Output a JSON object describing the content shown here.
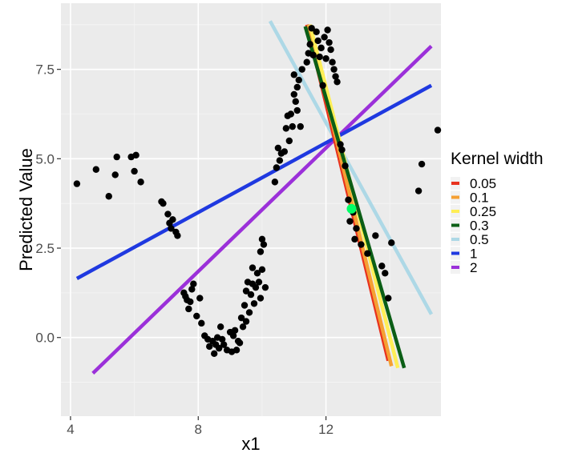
{
  "chart_data": {
    "type": "scatter",
    "title": "",
    "xlabel": "x1",
    "ylabel": "Predicted Value",
    "xlim": [
      3.7,
      15.6
    ],
    "ylim": [
      -2.2,
      9.35
    ],
    "x_ticks": [
      4,
      8,
      12
    ],
    "x_tick_labels": [
      "4",
      "8",
      "12"
    ],
    "y_ticks": [
      0,
      2.5,
      5,
      7.5
    ],
    "y_tick_labels": [
      "0.0",
      "2.5",
      "5.0",
      "7.5"
    ],
    "grid": true,
    "legend": {
      "title": "Kernel width",
      "placement": "right",
      "entries": [
        {
          "label": "0.05",
          "color": "#e8321e"
        },
        {
          "label": "0.1",
          "color": "#f5a033"
        },
        {
          "label": "0.25",
          "color": "#ffee55"
        },
        {
          "label": "0.3",
          "color": "#0b5e16"
        },
        {
          "label": "0.5",
          "color": "#add8e6"
        },
        {
          "label": "1",
          "color": "#1f39e0"
        },
        {
          "label": "2",
          "color": "#9b30d9"
        }
      ]
    },
    "points": [
      [
        4.2,
        4.3
      ],
      [
        4.8,
        4.7
      ],
      [
        5.2,
        3.95
      ],
      [
        5.4,
        4.55
      ],
      [
        5.45,
        5.05
      ],
      [
        5.9,
        5.05
      ],
      [
        6.05,
        5.1
      ],
      [
        6.2,
        4.35
      ],
      [
        6.0,
        4.65
      ],
      [
        6.85,
        3.8
      ],
      [
        6.9,
        3.75
      ],
      [
        7.05,
        3.45
      ],
      [
        7.1,
        3.2
      ],
      [
        7.15,
        3.05
      ],
      [
        7.2,
        3.3
      ],
      [
        7.3,
        2.95
      ],
      [
        7.35,
        2.85
      ],
      [
        7.55,
        1.25
      ],
      [
        7.6,
        1.15
      ],
      [
        7.65,
        1.05
      ],
      [
        7.7,
        0.8
      ],
      [
        7.75,
        1.0
      ],
      [
        7.85,
        1.5
      ],
      [
        7.8,
        1.35
      ],
      [
        7.95,
        0.6
      ],
      [
        8.05,
        1.1
      ],
      [
        8.1,
        0.4
      ],
      [
        8.2,
        0.05
      ],
      [
        8.3,
        -0.05
      ],
      [
        8.35,
        -0.25
      ],
      [
        8.45,
        -0.1
      ],
      [
        8.5,
        -0.45
      ],
      [
        8.55,
        -0.2
      ],
      [
        8.6,
        0.0
      ],
      [
        8.65,
        -0.3
      ],
      [
        8.7,
        0.3
      ],
      [
        8.75,
        -0.05
      ],
      [
        8.8,
        -0.2
      ],
      [
        8.9,
        -0.35
      ],
      [
        9.0,
        0.15
      ],
      [
        9.05,
        -0.4
      ],
      [
        9.1,
        0.05
      ],
      [
        9.15,
        0.2
      ],
      [
        9.2,
        -0.35
      ],
      [
        9.25,
        -0.1
      ],
      [
        9.3,
        -0.15
      ],
      [
        9.35,
        0.55
      ],
      [
        9.4,
        0.3
      ],
      [
        9.45,
        0.9
      ],
      [
        9.5,
        1.3
      ],
      [
        9.5,
        0.45
      ],
      [
        9.55,
        1.55
      ],
      [
        9.6,
        0.7
      ],
      [
        9.65,
        1.2
      ],
      [
        9.7,
        1.95
      ],
      [
        9.7,
        1.5
      ],
      [
        9.75,
        0.95
      ],
      [
        9.8,
        1.4
      ],
      [
        9.85,
        1.8
      ],
      [
        9.9,
        1.55
      ],
      [
        9.95,
        2.4
      ],
      [
        9.95,
        1.1
      ],
      [
        10.0,
        2.75
      ],
      [
        10.0,
        1.9
      ],
      [
        10.05,
        2.6
      ],
      [
        10.1,
        1.4
      ],
      [
        10.4,
        4.35
      ],
      [
        10.45,
        4.75
      ],
      [
        10.5,
        5.3
      ],
      [
        10.55,
        4.95
      ],
      [
        10.6,
        5.15
      ],
      [
        10.7,
        5.2
      ],
      [
        10.75,
        5.85
      ],
      [
        10.8,
        6.2
      ],
      [
        10.85,
        5.5
      ],
      [
        10.9,
        6.25
      ],
      [
        10.95,
        5.9
      ],
      [
        11.0,
        6.8
      ],
      [
        11.0,
        7.35
      ],
      [
        11.05,
        6.6
      ],
      [
        11.1,
        6.35
      ],
      [
        11.1,
        7.0
      ],
      [
        11.15,
        7.2
      ],
      [
        11.2,
        5.9
      ],
      [
        11.25,
        7.5
      ],
      [
        11.4,
        7.7
      ],
      [
        11.45,
        7.95
      ],
      [
        11.5,
        8.2
      ],
      [
        11.55,
        8.65
      ],
      [
        11.6,
        7.9
      ],
      [
        11.7,
        8.55
      ],
      [
        11.75,
        8.3
      ],
      [
        11.8,
        7.85
      ],
      [
        11.85,
        8.1
      ],
      [
        11.9,
        7.05
      ],
      [
        11.95,
        8.4
      ],
      [
        12.0,
        7.8
      ],
      [
        12.05,
        8.6
      ],
      [
        12.1,
        8.25
      ],
      [
        12.15,
        8.05
      ],
      [
        12.2,
        7.7
      ],
      [
        12.25,
        7.5
      ],
      [
        12.3,
        7.3
      ],
      [
        12.35,
        7.15
      ],
      [
        12.45,
        5.4
      ],
      [
        12.5,
        5.25
      ],
      [
        12.6,
        4.8
      ],
      [
        12.7,
        3.85
      ],
      [
        12.75,
        3.25
      ],
      [
        12.85,
        3.5
      ],
      [
        12.9,
        2.75
      ],
      [
        12.95,
        3.05
      ],
      [
        13.1,
        2.6
      ],
      [
        13.3,
        2.35
      ],
      [
        13.55,
        2.85
      ],
      [
        13.75,
        2.0
      ],
      [
        13.85,
        1.8
      ],
      [
        14.05,
        2.65
      ],
      [
        13.95,
        1.1
      ],
      [
        14.9,
        4.1
      ],
      [
        15.0,
        4.85
      ],
      [
        15.5,
        5.8
      ]
    ],
    "highlight_point": {
      "x": 12.8,
      "y": 3.6,
      "color": "#00ff66"
    },
    "lines": [
      {
        "name": "0.05",
        "color": "#e8321e",
        "x": [
          11.4,
          13.95
        ],
        "y": [
          8.75,
          -0.65
        ]
      },
      {
        "name": "0.1",
        "color": "#f5a033",
        "x": [
          11.45,
          14.05
        ],
        "y": [
          8.75,
          -0.8
        ]
      },
      {
        "name": "0.25",
        "color": "#ffee55",
        "x": [
          11.5,
          14.25
        ],
        "y": [
          8.75,
          -0.85
        ]
      },
      {
        "name": "0.3",
        "color": "#0b5e16",
        "x": [
          11.35,
          14.45
        ],
        "y": [
          8.7,
          -0.85
        ]
      },
      {
        "name": "0.5",
        "color": "#add8e6",
        "x": [
          10.25,
          15.3
        ],
        "y": [
          8.85,
          0.65
        ]
      },
      {
        "name": "1",
        "color": "#1f39e0",
        "x": [
          4.2,
          15.3
        ],
        "y": [
          1.65,
          7.05
        ]
      },
      {
        "name": "2",
        "color": "#9b30d9",
        "x": [
          4.7,
          15.3
        ],
        "y": [
          -1.0,
          8.15
        ]
      }
    ]
  }
}
